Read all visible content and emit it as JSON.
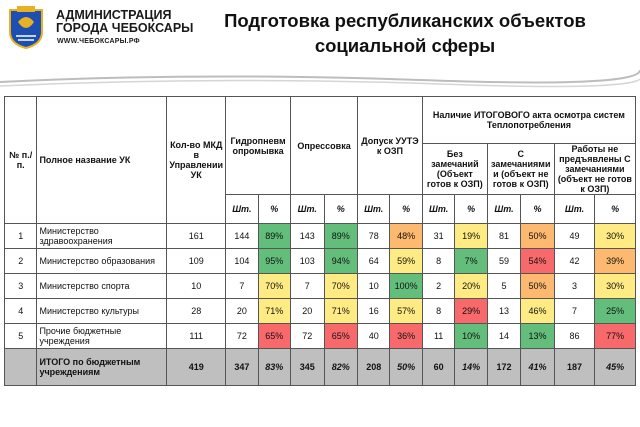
{
  "header": {
    "org_line1": "АДМИНИСТРАЦИЯ",
    "org_line2": "ГОРОДА ЧЕБОКСАРЫ",
    "site": "WWW.ЧЕБОКСАРЫ.РФ",
    "title_line1": "Подготовка республиканских объектов",
    "title_line2": "социальной сферы"
  },
  "table": {
    "h_num": "№ п./п.",
    "h_name": "Полное название УК",
    "h_mkd": "Кол-во МКД в Управлении УК",
    "h_gidro": "Гидропневм опромывка",
    "h_opres": "Опрессовка",
    "h_dopusk": "Допуск УУТЭ к ОЗП",
    "h_akt": "Наличие ИТОГОВОГО акта осмотра систем Теплопотребления",
    "h_bez": "Без замечаний (Объект готов к ОЗП)",
    "h_szam": "С замечаниями и (объект не готов к ОЗП)",
    "h_rab": "Работы не предъявлены С замечаниями (объект не готов к ОЗП)",
    "h_sht": "Шт.",
    "h_pct": "%",
    "rows": [
      {
        "n": "1",
        "name": "Министерство здравоохранения",
        "mkd": "161",
        "g": "144",
        "gp": "89%",
        "o": "143",
        "op": "89%",
        "d": "78",
        "dp": "48%",
        "b": "31",
        "bp": "19%",
        "s": "81",
        "sp": "50%",
        "r": "49",
        "rp": "30%"
      },
      {
        "n": "2",
        "name": "Министерство образования",
        "mkd": "109",
        "g": "104",
        "gp": "95%",
        "o": "103",
        "op": "94%",
        "d": "64",
        "dp": "59%",
        "b": "8",
        "bp": "7%",
        "s": "59",
        "sp": "54%",
        "r": "42",
        "rp": "39%"
      },
      {
        "n": "3",
        "name": "Министерство спорта",
        "mkd": "10",
        "g": "7",
        "gp": "70%",
        "o": "7",
        "op": "70%",
        "d": "10",
        "dp": "100%",
        "b": "2",
        "bp": "20%",
        "s": "5",
        "sp": "50%",
        "r": "3",
        "rp": "30%"
      },
      {
        "n": "4",
        "name": "Министерство культуры",
        "mkd": "28",
        "g": "20",
        "gp": "71%",
        "o": "20",
        "op": "71%",
        "d": "16",
        "dp": "57%",
        "b": "8",
        "bp": "29%",
        "s": "13",
        "sp": "46%",
        "r": "7",
        "rp": "25%"
      },
      {
        "n": "5",
        "name": "Прочие бюджетные учреждения",
        "mkd": "111",
        "g": "72",
        "gp": "65%",
        "o": "72",
        "op": "65%",
        "d": "40",
        "dp": "36%",
        "b": "11",
        "bp": "10%",
        "s": "14",
        "sp": "13%",
        "r": "86",
        "rp": "77%"
      }
    ],
    "total": {
      "name": "ИТОГО по бюджетным учреждениям",
      "mkd": "419",
      "g": "347",
      "gp": "83%",
      "o": "345",
      "op": "82%",
      "d": "208",
      "dp": "50%",
      "b": "60",
      "bp": "14%",
      "s": "172",
      "sp": "41%",
      "r": "187",
      "rp": "45%"
    }
  },
  "colors": {
    "green": "#63be7b",
    "ltgreen": "#b5d98a",
    "yellow": "#ffeb84",
    "orange": "#fcb96f",
    "red": "#f8696b",
    "grey": "#bfbfbf"
  }
}
